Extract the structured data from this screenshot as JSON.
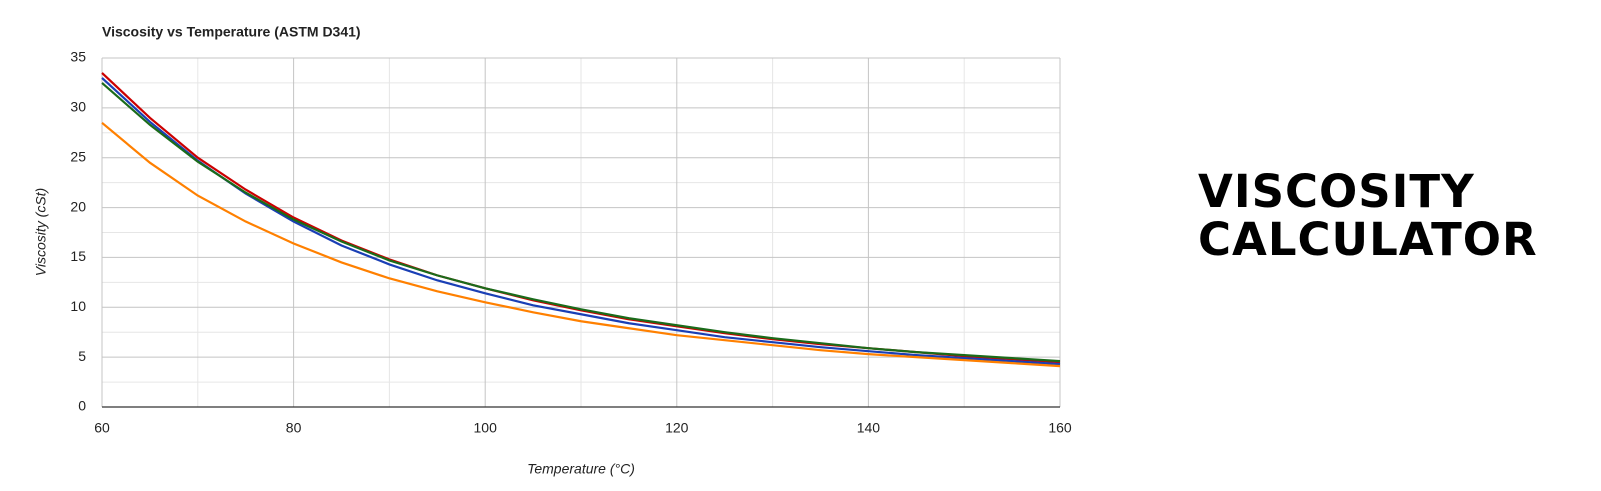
{
  "chart_data": {
    "type": "line",
    "title": "Viscosity vs Temperature (ASTM D341)",
    "x_label": "Temperature (°C)",
    "y_label": "Viscosity (cSt)",
    "x": [
      60,
      65,
      70,
      75,
      80,
      85,
      90,
      95,
      100,
      105,
      110,
      115,
      120,
      125,
      130,
      135,
      140,
      145,
      150,
      155,
      160
    ],
    "series": [
      {
        "color": "#cc0000",
        "values": [
          33.5,
          29,
          25,
          21.8,
          19,
          16.7,
          14.8,
          13.2,
          11.9,
          10.7,
          9.7,
          8.8,
          8.1,
          7.4,
          6.8,
          6.3,
          5.9,
          5.5,
          5.1,
          4.8,
          4.5
        ]
      },
      {
        "color": "#1a3fb5",
        "values": [
          33,
          28.6,
          24.7,
          21.4,
          18.6,
          16.2,
          14.3,
          12.7,
          11.4,
          10.2,
          9.3,
          8.4,
          7.7,
          7.0,
          6.5,
          6.0,
          5.6,
          5.2,
          4.9,
          4.6,
          4.3
        ]
      },
      {
        "color": "#1a6b1a",
        "values": [
          32.5,
          28.3,
          24.6,
          21.5,
          18.8,
          16.6,
          14.7,
          13.2,
          11.9,
          10.8,
          9.8,
          8.9,
          8.2,
          7.5,
          6.9,
          6.4,
          5.9,
          5.5,
          5.2,
          4.9,
          4.6
        ]
      },
      {
        "color": "#ff8000",
        "values": [
          28.5,
          24.5,
          21.2,
          18.6,
          16.4,
          14.5,
          12.9,
          11.6,
          10.5,
          9.5,
          8.6,
          7.9,
          7.2,
          6.7,
          6.2,
          5.7,
          5.3,
          5.0,
          4.7,
          4.4,
          4.1
        ]
      }
    ],
    "xlim": [
      60,
      160
    ],
    "xticks": [
      60,
      80,
      100,
      120,
      140,
      160
    ],
    "xminorticks": [
      70,
      90,
      110,
      130,
      150
    ],
    "ylim": [
      0,
      35
    ],
    "yticks": [
      0,
      5,
      10,
      15,
      20,
      25,
      30,
      35
    ],
    "yminorticks": [
      2.5,
      7.5,
      12.5,
      17.5,
      22.5,
      27.5,
      32.5
    ],
    "grid": true
  },
  "side_title": "VISCOSITY CALCULATOR"
}
